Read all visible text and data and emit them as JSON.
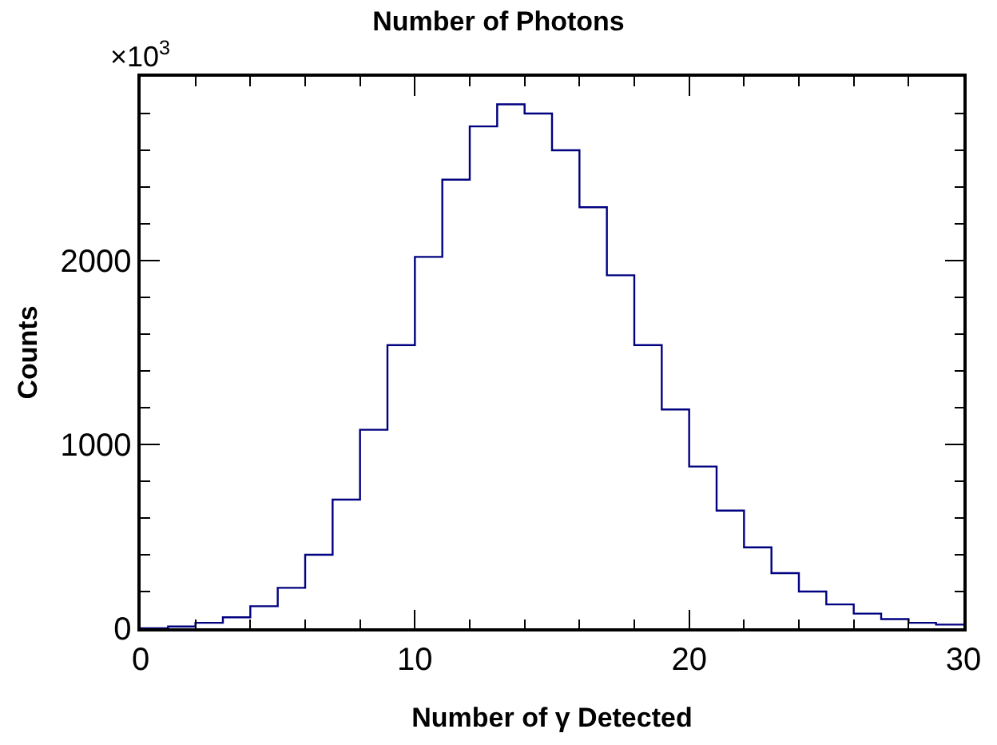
{
  "chart_data": {
    "type": "histogram",
    "title": "Number of Photons",
    "xlabel": "Number of γ Detected",
    "ylabel": "Counts",
    "annotations": [
      "×10$^{3}$"
    ],
    "bins": [
      0,
      1,
      2,
      3,
      4,
      5,
      6,
      7,
      8,
      9,
      10,
      11,
      12,
      13,
      14,
      15,
      16,
      17,
      18,
      19,
      20,
      21,
      22,
      23,
      24,
      25,
      26,
      27,
      28,
      29,
      30
    ],
    "values": [
      0,
      10,
      30,
      60,
      120,
      220,
      400,
      700,
      1080,
      1540,
      2020,
      2440,
      2730,
      2850,
      2800,
      2600,
      2290,
      1920,
      1540,
      1190,
      880,
      640,
      440,
      300,
      200,
      130,
      80,
      50,
      30,
      20
    ],
    "color": "#000080",
    "xlim": [
      0,
      30
    ],
    "ylim": [
      0,
      3000
    ],
    "xticks": [
      0,
      {
        "value": 2,
        "label": null
      },
      {
        "value": 4,
        "label": null
      },
      {
        "value": 6,
        "label": null
      },
      {
        "value": 8,
        "label": null
      },
      10,
      {
        "value": 12,
        "label": null
      },
      {
        "value": 14,
        "label": null
      },
      {
        "value": 16,
        "label": null
      },
      {
        "value": 18,
        "label": null
      },
      20,
      {
        "value": 22,
        "label": null
      },
      {
        "value": 24,
        "label": null
      },
      {
        "value": 26,
        "label": null
      },
      {
        "value": 28,
        "label": null
      },
      30
    ],
    "yticks": [
      0,
      {
        "value": 200,
        "label": null
      },
      {
        "value": 400,
        "label": null
      },
      {
        "value": 600,
        "label": null
      },
      {
        "value": 800,
        "label": null
      },
      1000,
      {
        "value": 1200,
        "label": null
      },
      {
        "value": 1400,
        "label": null
      },
      {
        "value": 1600,
        "label": null
      },
      {
        "value": 1800,
        "label": null
      },
      2000,
      {
        "value": 2200,
        "label": null
      },
      {
        "value": 2400,
        "label": null
      },
      {
        "value": 2600,
        "label": null
      },
      {
        "value": 2800,
        "label": null
      }
    ]
  }
}
